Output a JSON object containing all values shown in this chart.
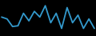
{
  "x": [
    0,
    1,
    2,
    3,
    4,
    5,
    6,
    7,
    8,
    9,
    10,
    11,
    12,
    13,
    14,
    15,
    16,
    17
  ],
  "y": [
    6.5,
    6.0,
    4.0,
    4.2,
    7.5,
    5.5,
    8.0,
    6.5,
    9.5,
    5.0,
    7.5,
    3.5,
    9.0,
    5.0,
    7.0,
    3.5,
    6.0,
    3.5
  ],
  "line_color": "#3399cc",
  "linewidth": 1.3,
  "background_color": "#000000",
  "ylim": [
    1.5,
    11
  ],
  "xlim": [
    -0.3,
    17.3
  ]
}
